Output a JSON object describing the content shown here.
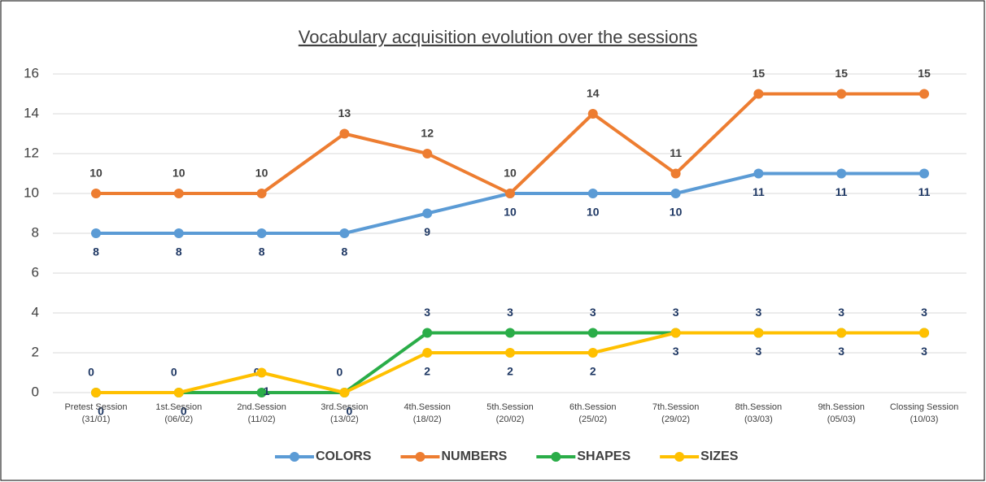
{
  "chart_data": {
    "type": "line",
    "title": "Vocabulary acquisition evolution over the sessions",
    "categories": [
      "Pretest Session\n(31/01)",
      "1st.Session\n(06/02)",
      "2nd.Session\n(11/02)",
      "3rd.Session\n(13/02)",
      "4th.Session\n(18/02)",
      "5th.Session\n(20/02)",
      "6th.Session\n(25/02)",
      "7th.Session\n(29/02)",
      "8th.Session\n(03/03)",
      "9th.Session\n(05/03)",
      "Clossing Session\n(10/03)"
    ],
    "series": [
      {
        "name": "COLORS",
        "color": "#5b9bd5",
        "values": [
          8,
          8,
          8,
          8,
          9,
          10,
          10,
          10,
          11,
          11,
          11
        ]
      },
      {
        "name": "NUMBERS",
        "color": "#ed7d31",
        "values": [
          10,
          10,
          10,
          13,
          12,
          10,
          14,
          11,
          15,
          15,
          15
        ]
      },
      {
        "name": "SHAPES",
        "color": "#2aad48",
        "values": [
          0,
          0,
          0,
          0,
          3,
          3,
          3,
          3,
          3,
          3,
          3
        ]
      },
      {
        "name": "SIZES",
        "color": "#ffc000",
        "values": [
          0,
          0,
          1,
          0,
          2,
          2,
          2,
          3,
          3,
          3,
          3
        ]
      }
    ],
    "ylim": [
      0,
      16
    ],
    "yticks": [
      0,
      2,
      4,
      6,
      8,
      10,
      12,
      14,
      16
    ],
    "grid": true,
    "legend": "bottom"
  }
}
